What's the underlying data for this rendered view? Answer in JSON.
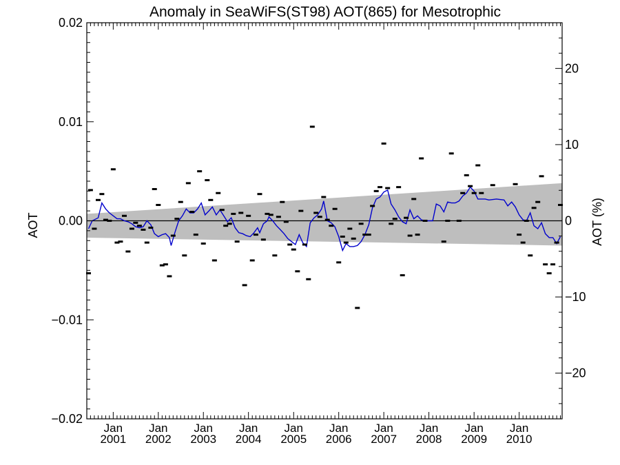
{
  "chart_data": {
    "type": "scatter",
    "title": "Anomaly in SeaWiFS(ST98) AOT(865) for Mesotrophic",
    "ylabel": "AOT",
    "y2label": "AOT (%)",
    "xlim": [
      "2000-06-01",
      "2010-12-15"
    ],
    "ylim": [
      -0.02,
      0.02
    ],
    "y2lim": [
      -26,
      26
    ],
    "yticks": [
      -0.02,
      -0.01,
      0.0,
      0.01,
      0.02
    ],
    "ytick_labels": [
      "−0.02",
      "−0.01",
      "0.00",
      "0.01",
      "0.02"
    ],
    "y2ticks": [
      -20,
      -10,
      0,
      10,
      20
    ],
    "y2tick_labels": [
      "−20",
      "−10",
      "0",
      "10",
      "20"
    ],
    "xticks": [
      {
        "date": "2001-01-01",
        "month": "Jan",
        "year": "2001"
      },
      {
        "date": "2002-01-01",
        "month": "Jan",
        "year": "2002"
      },
      {
        "date": "2003-01-01",
        "month": "Jan",
        "year": "2003"
      },
      {
        "date": "2004-01-01",
        "month": "Jan",
        "year": "2004"
      },
      {
        "date": "2005-01-01",
        "month": "Jan",
        "year": "2005"
      },
      {
        "date": "2006-01-01",
        "month": "Jan",
        "year": "2006"
      },
      {
        "date": "2007-01-01",
        "month": "Jan",
        "year": "2007"
      },
      {
        "date": "2008-01-01",
        "month": "Jan",
        "year": "2008"
      },
      {
        "date": "2009-01-01",
        "month": "Jan",
        "year": "2009"
      },
      {
        "date": "2010-01-01",
        "month": "Jan",
        "year": "2010"
      }
    ],
    "grid": false,
    "legend": "none",
    "colors": {
      "line": "#0000cc",
      "band": "#bebebe",
      "points": "#000000",
      "zero_line": "#000000"
    },
    "band": {
      "start": {
        "x": "2000-06-01",
        "low": -0.0017,
        "high": 0.0007
      },
      "end": {
        "x": "2010-12-15",
        "low": -0.0025,
        "high": 0.0038
      }
    },
    "points": [
      {
        "x": "2000-06-15",
        "y": -0.0053
      },
      {
        "x": "2000-07-01",
        "y": 0.0031
      },
      {
        "x": "2000-08-01",
        "y": -0.0008
      },
      {
        "x": "2000-09-01",
        "y": 0.0021
      },
      {
        "x": "2000-10-01",
        "y": 0.0027
      },
      {
        "x": "2000-11-01",
        "y": 0.0001
      },
      {
        "x": "2000-12-01",
        "y": 0.0
      },
      {
        "x": "2001-01-01",
        "y": 0.0052
      },
      {
        "x": "2001-02-01",
        "y": -0.0022
      },
      {
        "x": "2001-03-01",
        "y": -0.0021
      },
      {
        "x": "2001-04-01",
        "y": 0.0005
      },
      {
        "x": "2001-05-01",
        "y": -0.0031
      },
      {
        "x": "2001-06-01",
        "y": -0.0008
      },
      {
        "x": "2001-07-01",
        "y": -0.0002
      },
      {
        "x": "2001-08-01",
        "y": -0.0005
      },
      {
        "x": "2001-09-01",
        "y": -0.0009
      },
      {
        "x": "2001-10-01",
        "y": -0.0022
      },
      {
        "x": "2001-11-01",
        "y": -0.0007
      },
      {
        "x": "2001-12-01",
        "y": 0.0032
      },
      {
        "x": "2002-01-01",
        "y": 0.0016
      },
      {
        "x": "2002-02-01",
        "y": -0.0045
      },
      {
        "x": "2002-03-01",
        "y": -0.0044
      },
      {
        "x": "2002-04-01",
        "y": -0.0056
      },
      {
        "x": "2002-05-01",
        "y": -0.0015
      },
      {
        "x": "2002-06-01",
        "y": 0.0002
      },
      {
        "x": "2002-07-01",
        "y": 0.0019
      },
      {
        "x": "2002-08-01",
        "y": -0.0035
      },
      {
        "x": "2002-09-01",
        "y": 0.0038
      },
      {
        "x": "2002-10-01",
        "y": 0.0009
      },
      {
        "x": "2002-11-01",
        "y": -0.0014
      },
      {
        "x": "2002-12-01",
        "y": 0.005
      },
      {
        "x": "2003-01-01",
        "y": -0.0023
      },
      {
        "x": "2003-02-01",
        "y": 0.0041
      },
      {
        "x": "2003-03-01",
        "y": 0.0021
      },
      {
        "x": "2003-04-01",
        "y": -0.004
      },
      {
        "x": "2003-05-01",
        "y": 0.0028
      },
      {
        "x": "2003-06-01",
        "y": 0.0011
      },
      {
        "x": "2003-07-01",
        "y": -0.0005
      },
      {
        "x": "2003-08-01",
        "y": -0.0003
      },
      {
        "x": "2003-09-01",
        "y": 0.0007
      },
      {
        "x": "2003-10-01",
        "y": -0.0021
      },
      {
        "x": "2003-11-01",
        "y": 0.0008
      },
      {
        "x": "2003-12-01",
        "y": -0.0065
      },
      {
        "x": "2004-01-01",
        "y": 0.0005
      },
      {
        "x": "2004-02-01",
        "y": -0.004
      },
      {
        "x": "2004-03-01",
        "y": -0.0014
      },
      {
        "x": "2004-04-01",
        "y": 0.0027
      },
      {
        "x": "2004-05-01",
        "y": -0.0019
      },
      {
        "x": "2004-06-01",
        "y": 0.0007
      },
      {
        "x": "2004-07-01",
        "y": 0.0006
      },
      {
        "x": "2004-08-01",
        "y": -0.0035
      },
      {
        "x": "2004-09-01",
        "y": 0.0004
      },
      {
        "x": "2004-10-01",
        "y": 0.0019
      },
      {
        "x": "2004-11-01",
        "y": -0.0001
      },
      {
        "x": "2004-12-01",
        "y": -0.0024
      },
      {
        "x": "2005-01-01",
        "y": -0.0029
      },
      {
        "x": "2005-02-01",
        "y": -0.0051
      },
      {
        "x": "2005-03-01",
        "y": 0.001
      },
      {
        "x": "2005-04-01",
        "y": -0.0024
      },
      {
        "x": "2005-05-01",
        "y": -0.0059
      },
      {
        "x": "2005-06-01",
        "y": 0.0095
      },
      {
        "x": "2005-07-01",
        "y": 0.0008
      },
      {
        "x": "2005-08-01",
        "y": 0.0004
      },
      {
        "x": "2005-09-01",
        "y": 0.0024
      },
      {
        "x": "2005-10-01",
        "y": 0.0001
      },
      {
        "x": "2005-11-01",
        "y": -0.0005
      },
      {
        "x": "2005-12-01",
        "y": 0.0012
      },
      {
        "x": "2006-01-01",
        "y": -0.0042
      },
      {
        "x": "2006-02-01",
        "y": -0.0016
      },
      {
        "x": "2006-03-01",
        "y": -0.0022
      },
      {
        "x": "2006-04-01",
        "y": -0.0008
      },
      {
        "x": "2006-05-01",
        "y": -0.0018
      },
      {
        "x": "2006-06-01",
        "y": -0.0088
      },
      {
        "x": "2006-07-01",
        "y": -0.0003
      },
      {
        "x": "2006-08-01",
        "y": -0.0014
      },
      {
        "x": "2006-09-01",
        "y": -0.0014
      },
      {
        "x": "2006-10-01",
        "y": 0.0015
      },
      {
        "x": "2006-11-01",
        "y": 0.003
      },
      {
        "x": "2006-12-01",
        "y": 0.0034
      },
      {
        "x": "2007-01-01",
        "y": 0.0078
      },
      {
        "x": "2007-02-01",
        "y": 0.0033
      },
      {
        "x": "2007-03-01",
        "y": -0.0003
      },
      {
        "x": "2007-04-01",
        "y": 0.0002
      },
      {
        "x": "2007-05-01",
        "y": 0.0034
      },
      {
        "x": "2007-06-01",
        "y": -0.0055
      },
      {
        "x": "2007-07-01",
        "y": 0.0003
      },
      {
        "x": "2007-08-01",
        "y": -0.0015
      },
      {
        "x": "2007-09-01",
        "y": 0.0022
      },
      {
        "x": "2007-10-01",
        "y": -0.0014
      },
      {
        "x": "2007-11-01",
        "y": 0.0063
      },
      {
        "x": "2007-12-01",
        "y": 0.0
      },
      {
        "x": "2008-05-01",
        "y": -0.0021
      },
      {
        "x": "2008-06-01",
        "y": 0.0
      },
      {
        "x": "2008-07-01",
        "y": 0.0068
      },
      {
        "x": "2008-09-01",
        "y": 0.0
      },
      {
        "x": "2008-10-01",
        "y": 0.0028
      },
      {
        "x": "2008-11-01",
        "y": 0.0046
      },
      {
        "x": "2008-12-01",
        "y": 0.0035
      },
      {
        "x": "2009-01-01",
        "y": 0.0028
      },
      {
        "x": "2009-02-01",
        "y": 0.0056
      },
      {
        "x": "2009-03-01",
        "y": 0.0028
      },
      {
        "x": "2009-06-01",
        "y": 0.0036
      },
      {
        "x": "2009-12-01",
        "y": 0.0037
      },
      {
        "x": "2010-01-01",
        "y": -0.0014
      },
      {
        "x": "2010-02-01",
        "y": -0.0022
      },
      {
        "x": "2010-03-01",
        "y": 0.0
      },
      {
        "x": "2010-04-01",
        "y": -0.0035
      },
      {
        "x": "2010-05-01",
        "y": 0.0013
      },
      {
        "x": "2010-06-01",
        "y": 0.0019
      },
      {
        "x": "2010-07-01",
        "y": 0.0045
      },
      {
        "x": "2010-08-01",
        "y": -0.0044
      },
      {
        "x": "2010-09-01",
        "y": -0.0053
      },
      {
        "x": "2010-10-01",
        "y": -0.0044
      },
      {
        "x": "2010-11-01",
        "y": -0.0022
      },
      {
        "x": "2010-12-01",
        "y": 0.0016
      }
    ],
    "line": [
      {
        "x": "2000-06-15",
        "y": -0.0008
      },
      {
        "x": "2000-07-15",
        "y": 0.0
      },
      {
        "x": "2000-09-01",
        "y": 0.0003
      },
      {
        "x": "2000-10-01",
        "y": 0.0018
      },
      {
        "x": "2000-11-01",
        "y": 0.0012
      },
      {
        "x": "2000-12-01",
        "y": 0.0008
      },
      {
        "x": "2001-01-01",
        "y": 0.0005
      },
      {
        "x": "2001-02-01",
        "y": 0.0002
      },
      {
        "x": "2001-03-01",
        "y": 0.0002
      },
      {
        "x": "2001-04-01",
        "y": 0.0
      },
      {
        "x": "2001-05-01",
        "y": -0.0001
      },
      {
        "x": "2001-06-01",
        "y": -0.0003
      },
      {
        "x": "2001-07-01",
        "y": -0.0006
      },
      {
        "x": "2001-08-01",
        "y": -0.0007
      },
      {
        "x": "2001-09-01",
        "y": -0.0006
      },
      {
        "x": "2001-10-01",
        "y": 0.0
      },
      {
        "x": "2001-11-01",
        "y": -0.0004
      },
      {
        "x": "2001-12-01",
        "y": -0.0013
      },
      {
        "x": "2002-01-01",
        "y": -0.0016
      },
      {
        "x": "2002-02-01",
        "y": -0.0014
      },
      {
        "x": "2002-03-01",
        "y": -0.0013
      },
      {
        "x": "2002-04-01",
        "y": -0.0017
      },
      {
        "x": "2002-04-15",
        "y": -0.0025
      },
      {
        "x": "2002-05-15",
        "y": -0.0012
      },
      {
        "x": "2002-06-15",
        "y": 0.0
      },
      {
        "x": "2002-07-15",
        "y": 0.0005
      },
      {
        "x": "2002-08-15",
        "y": 0.0012
      },
      {
        "x": "2002-09-15",
        "y": 0.0008
      },
      {
        "x": "2002-10-15",
        "y": 0.0008
      },
      {
        "x": "2002-11-15",
        "y": 0.0012
      },
      {
        "x": "2002-12-15",
        "y": 0.0018
      },
      {
        "x": "2003-01-15",
        "y": 0.0006
      },
      {
        "x": "2003-02-15",
        "y": 0.001
      },
      {
        "x": "2003-03-15",
        "y": 0.0014
      },
      {
        "x": "2003-04-15",
        "y": 0.0006
      },
      {
        "x": "2003-05-15",
        "y": 0.0011
      },
      {
        "x": "2003-06-15",
        "y": 0.0005
      },
      {
        "x": "2003-07-15",
        "y": -0.0001
      },
      {
        "x": "2003-08-15",
        "y": 0.0003
      },
      {
        "x": "2003-09-15",
        "y": -0.0007
      },
      {
        "x": "2003-10-15",
        "y": -0.0012
      },
      {
        "x": "2003-11-15",
        "y": -0.0013
      },
      {
        "x": "2003-12-15",
        "y": -0.0015
      },
      {
        "x": "2004-01-15",
        "y": -0.0016
      },
      {
        "x": "2004-02-15",
        "y": -0.0012
      },
      {
        "x": "2004-03-15",
        "y": -0.0007
      },
      {
        "x": "2004-04-01",
        "y": -0.0012
      },
      {
        "x": "2004-05-01",
        "y": -0.0003
      },
      {
        "x": "2004-06-01",
        "y": 0.0
      },
      {
        "x": "2004-06-15",
        "y": 0.0004
      },
      {
        "x": "2004-07-15",
        "y": 0.0
      },
      {
        "x": "2004-08-15",
        "y": -0.0005
      },
      {
        "x": "2004-09-15",
        "y": -0.0009
      },
      {
        "x": "2004-10-15",
        "y": -0.0013
      },
      {
        "x": "2004-11-15",
        "y": -0.0018
      },
      {
        "x": "2004-12-15",
        "y": -0.0021
      },
      {
        "x": "2005-01-15",
        "y": -0.0024
      },
      {
        "x": "2005-02-15",
        "y": -0.0014
      },
      {
        "x": "2005-03-15",
        "y": -0.0022
      },
      {
        "x": "2005-04-15",
        "y": -0.0026
      },
      {
        "x": "2005-05-15",
        "y": -0.0002
      },
      {
        "x": "2005-06-15",
        "y": 0.0003
      },
      {
        "x": "2005-07-15",
        "y": 0.0006
      },
      {
        "x": "2005-08-15",
        "y": 0.0012
      },
      {
        "x": "2005-09-01",
        "y": 0.002
      },
      {
        "x": "2005-10-01",
        "y": 0.0
      },
      {
        "x": "2005-11-01",
        "y": -0.0002
      },
      {
        "x": "2005-12-01",
        "y": -0.0006
      },
      {
        "x": "2006-01-01",
        "y": -0.0016
      },
      {
        "x": "2006-02-01",
        "y": -0.003
      },
      {
        "x": "2006-03-01",
        "y": -0.0023
      },
      {
        "x": "2006-04-01",
        "y": -0.0026
      },
      {
        "x": "2006-05-01",
        "y": -0.0026
      },
      {
        "x": "2006-06-01",
        "y": -0.0025
      },
      {
        "x": "2006-07-01",
        "y": -0.0021
      },
      {
        "x": "2006-08-01",
        "y": -0.0014
      },
      {
        "x": "2006-09-01",
        "y": -0.0004
      },
      {
        "x": "2006-10-01",
        "y": 0.0013
      },
      {
        "x": "2006-11-01",
        "y": 0.0022
      },
      {
        "x": "2006-12-01",
        "y": 0.0024
      },
      {
        "x": "2007-01-01",
        "y": 0.0029
      },
      {
        "x": "2007-02-01",
        "y": 0.0031
      },
      {
        "x": "2007-03-01",
        "y": 0.0017
      },
      {
        "x": "2007-04-01",
        "y": 0.0011
      },
      {
        "x": "2007-05-01",
        "y": 0.0004
      },
      {
        "x": "2007-06-01",
        "y": -0.0001
      },
      {
        "x": "2007-07-01",
        "y": -0.0003
      },
      {
        "x": "2007-08-01",
        "y": 0.0011
      },
      {
        "x": "2007-09-01",
        "y": 0.0002
      },
      {
        "x": "2007-10-01",
        "y": 0.0005
      },
      {
        "x": "2007-11-01",
        "y": 0.0001
      },
      {
        "x": "2007-12-01",
        "y": 0.0
      },
      {
        "x": "2008-01-01",
        "y": 0.0
      },
      {
        "x": "2008-02-01",
        "y": 0.0
      },
      {
        "x": "2008-03-01",
        "y": 0.0017
      },
      {
        "x": "2008-04-01",
        "y": 0.0015
      },
      {
        "x": "2008-05-01",
        "y": 0.0009
      },
      {
        "x": "2008-06-01",
        "y": 0.0019
      },
      {
        "x": "2008-07-01",
        "y": 0.0018
      },
      {
        "x": "2008-08-01",
        "y": 0.0018
      },
      {
        "x": "2008-09-01",
        "y": 0.002
      },
      {
        "x": "2008-10-01",
        "y": 0.0025
      },
      {
        "x": "2008-11-01",
        "y": 0.0028
      },
      {
        "x": "2008-12-01",
        "y": 0.0034
      },
      {
        "x": "2009-01-01",
        "y": 0.003
      },
      {
        "x": "2009-02-01",
        "y": 0.0022
      },
      {
        "x": "2009-03-01",
        "y": 0.0022
      },
      {
        "x": "2009-04-01",
        "y": 0.0022
      },
      {
        "x": "2009-05-01",
        "y": 0.0021
      },
      {
        "x": "2009-07-01",
        "y": 0.0022
      },
      {
        "x": "2009-09-01",
        "y": 0.0021
      },
      {
        "x": "2009-10-01",
        "y": 0.0015
      },
      {
        "x": "2009-11-01",
        "y": 0.0019
      },
      {
        "x": "2009-12-01",
        "y": 0.0014
      },
      {
        "x": "2010-01-01",
        "y": 0.0006
      },
      {
        "x": "2010-02-01",
        "y": 0.0001
      },
      {
        "x": "2010-03-01",
        "y": 0.0
      },
      {
        "x": "2010-04-01",
        "y": 0.0008
      },
      {
        "x": "2010-05-01",
        "y": -0.0005
      },
      {
        "x": "2010-06-01",
        "y": -0.0008
      },
      {
        "x": "2010-07-01",
        "y": -0.0002
      },
      {
        "x": "2010-08-01",
        "y": -0.0013
      },
      {
        "x": "2010-09-01",
        "y": -0.0017
      },
      {
        "x": "2010-10-01",
        "y": -0.0017
      },
      {
        "x": "2010-11-01",
        "y": -0.0023
      },
      {
        "x": "2010-12-01",
        "y": -0.0016
      }
    ]
  }
}
